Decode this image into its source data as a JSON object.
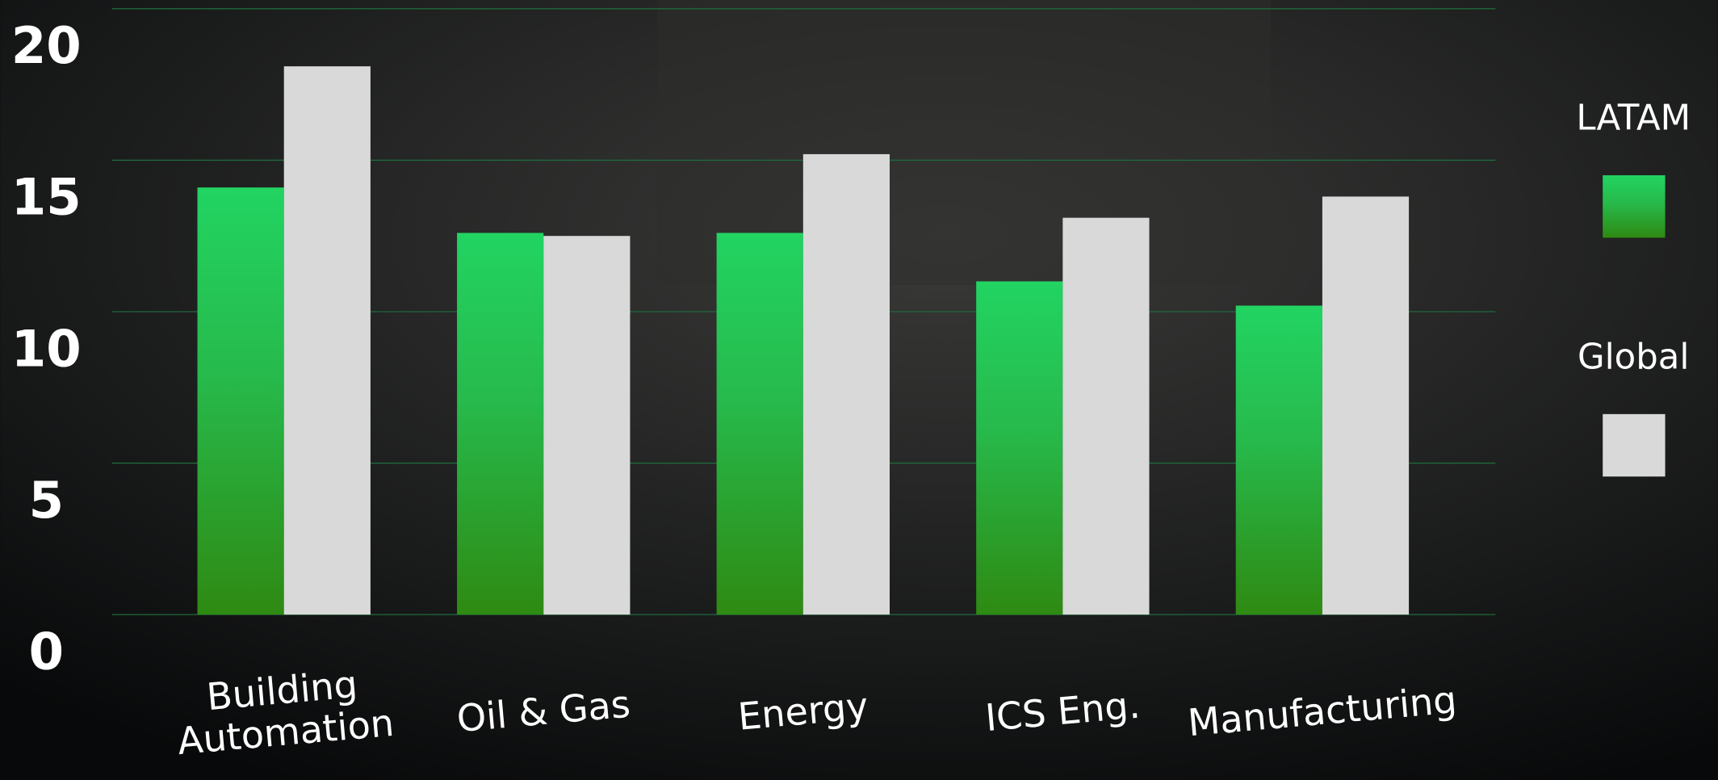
{
  "chart_data": {
    "type": "bar",
    "categories": [
      "Building Automation",
      "Oil & Gas",
      "Energy",
      "ICS Eng.",
      "Manufacturing"
    ],
    "series": [
      {
        "name": "LATAM",
        "color": "#22d462",
        "values": [
          14.1,
          12.6,
          12.6,
          11.0,
          10.2
        ]
      },
      {
        "name": "Global",
        "color": "#d9d9d9",
        "values": [
          18.1,
          12.5,
          15.2,
          13.1,
          13.8
        ]
      }
    ],
    "ylim": [
      0,
      20
    ],
    "yticks": [
      0,
      5,
      10,
      15,
      20
    ],
    "grid": true
  }
}
